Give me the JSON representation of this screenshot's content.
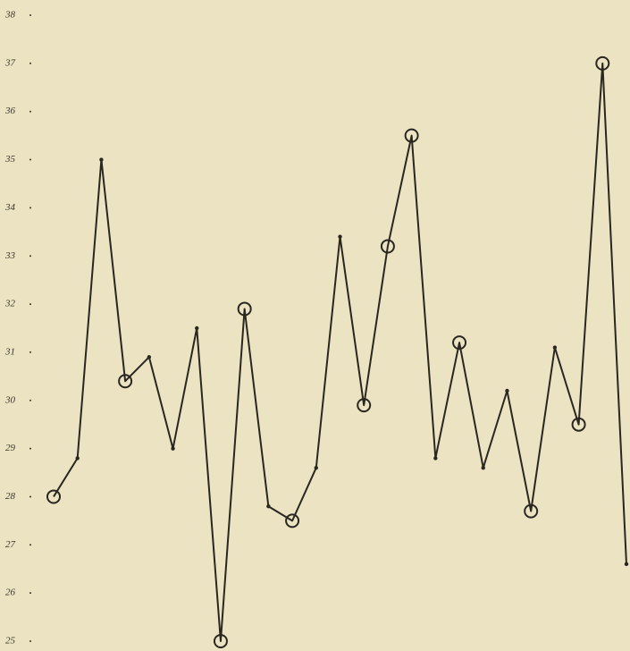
{
  "chart_data": {
    "type": "line",
    "categories": [
      null,
      null,
      null,
      null,
      null,
      null,
      null,
      null,
      null,
      null,
      null,
      null,
      null,
      null,
      null,
      null,
      null,
      null,
      null,
      null,
      null,
      null,
      null,
      null,
      null
    ],
    "series": [
      {
        "color": "#2a2620",
        "values": [
          28.0,
          28.8,
          35.0,
          30.4,
          30.9,
          29.0,
          31.5,
          25.0,
          31.9,
          27.8,
          27.5,
          28.6,
          33.4,
          29.9,
          33.2,
          35.5,
          28.8,
          31.2,
          28.6,
          30.2,
          27.7,
          31.1,
          29.5,
          37.0,
          26.6
        ],
        "markers": [
          "circle",
          "dot",
          "dot",
          "circle",
          "dot",
          "dot",
          "dot",
          "circle",
          "circle",
          "dot",
          "circle",
          "dot",
          "dot",
          "circle",
          "circle",
          "circle",
          "dot",
          "circle",
          "dot",
          "dot",
          "circle",
          "dot",
          "circle",
          "circle",
          "dot"
        ]
      }
    ],
    "ylim": [
      25,
      38
    ],
    "yticks": [
      25,
      26,
      27,
      28,
      29,
      30,
      31,
      32,
      33,
      34,
      35,
      36,
      37,
      38
    ],
    "grid": false
  }
}
